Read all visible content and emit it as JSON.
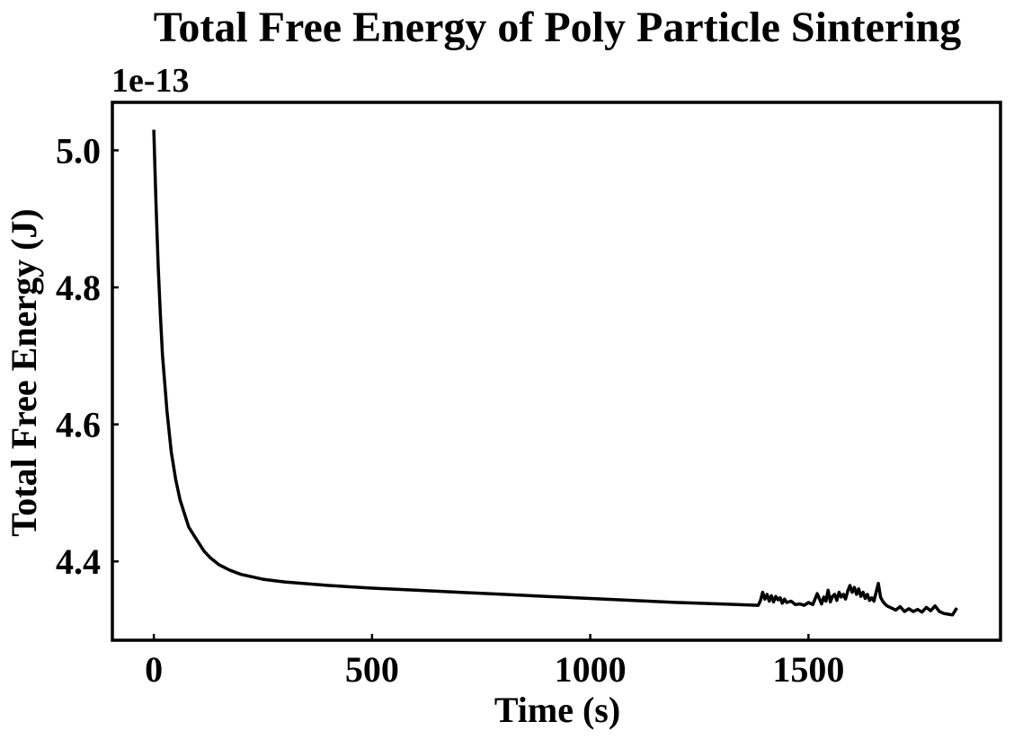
{
  "chart_data": {
    "type": "line",
    "title": "Total Free Energy of Poly Particle Sintering",
    "xlabel": "Time (s)",
    "ylabel": "Total Free Energy (J)",
    "y_offset_label": "1e-13",
    "xlim": [
      -95,
      1940
    ],
    "ylim": [
      4.285,
      5.07
    ],
    "x_ticks": [
      0,
      500,
      1000,
      1500
    ],
    "x_tick_labels": [
      "0",
      "500",
      "1000",
      "1500"
    ],
    "y_ticks": [
      4.4,
      4.6,
      4.8,
      5.0
    ],
    "y_tick_labels": [
      "4.4",
      "4.6",
      "4.8",
      "5.0"
    ],
    "grid": false,
    "legend": "none",
    "series": [
      {
        "color": "#000000",
        "x": [
          0,
          2,
          5,
          10,
          15,
          20,
          25,
          30,
          40,
          50,
          60,
          70,
          80,
          90,
          100,
          115,
          130,
          150,
          175,
          200,
          250,
          300,
          400,
          500,
          600,
          700,
          800,
          900,
          1000,
          1100,
          1200,
          1300,
          1385,
          1390,
          1395,
          1400,
          1405,
          1410,
          1415,
          1420,
          1425,
          1430,
          1435,
          1440,
          1445,
          1450,
          1460,
          1470,
          1480,
          1490,
          1500,
          1510,
          1520,
          1530,
          1535,
          1540,
          1545,
          1550,
          1555,
          1560,
          1565,
          1570,
          1575,
          1580,
          1585,
          1590,
          1595,
          1600,
          1605,
          1610,
          1615,
          1620,
          1625,
          1630,
          1635,
          1640,
          1645,
          1650,
          1655,
          1660,
          1665,
          1670,
          1675,
          1680,
          1690,
          1700,
          1710,
          1720,
          1730,
          1740,
          1750,
          1760,
          1770,
          1780,
          1790,
          1800,
          1810,
          1820,
          1830,
          1840
        ],
        "y": [
          5.03,
          4.985,
          4.92,
          4.83,
          4.76,
          4.7,
          4.66,
          4.62,
          4.56,
          4.52,
          4.49,
          4.47,
          4.45,
          4.44,
          4.43,
          4.415,
          4.405,
          4.395,
          4.387,
          4.381,
          4.374,
          4.37,
          4.365,
          4.361,
          4.358,
          4.355,
          4.352,
          4.349,
          4.346,
          4.343,
          4.34,
          4.338,
          4.336,
          4.343,
          4.355,
          4.345,
          4.352,
          4.342,
          4.35,
          4.341,
          4.349,
          4.344,
          4.347,
          4.339,
          4.345,
          4.34,
          4.342,
          4.337,
          4.338,
          4.336,
          4.34,
          4.337,
          4.353,
          4.338,
          4.348,
          4.342,
          4.358,
          4.341,
          4.349,
          4.352,
          4.343,
          4.355,
          4.348,
          4.352,
          4.345,
          4.357,
          4.365,
          4.355,
          4.362,
          4.352,
          4.36,
          4.349,
          4.355,
          4.346,
          4.352,
          4.343,
          4.347,
          4.342,
          4.355,
          4.368,
          4.348,
          4.342,
          4.338,
          4.335,
          4.332,
          4.329,
          4.334,
          4.327,
          4.331,
          4.327,
          4.33,
          4.326,
          4.333,
          4.328,
          4.335,
          4.327,
          4.324,
          4.323,
          4.322,
          4.332
        ]
      }
    ]
  }
}
